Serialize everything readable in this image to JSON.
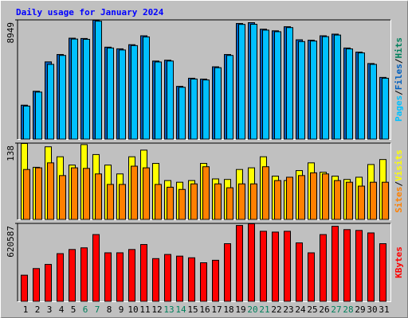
{
  "chart_data": [
    {
      "type": "bar",
      "title": "Daily usage for January 2024",
      "ylim": [
        0,
        8949
      ],
      "yticks": [
        8949
      ],
      "legend_separator": "/",
      "series": [
        {
          "name": "Hits",
          "color": "#00805c",
          "values": [
            2574,
            3617,
            5823,
            6375,
            7601,
            7580,
            8949,
            6927,
            6804,
            7110,
            7785,
            5884,
            5946,
            3984,
            4597,
            4536,
            5455,
            6375,
            8704,
            8765,
            8275,
            8152,
            8459,
            7478,
            7450,
            7785,
            7907,
            6865,
            6559,
            5700,
            4658
          ]
        },
        {
          "name": "Files",
          "color": "#0060c0",
          "values": [
            2574,
            3617,
            5823,
            6375,
            7601,
            7580,
            8949,
            6927,
            6804,
            7110,
            7785,
            5884,
            5946,
            3984,
            4597,
            4536,
            5455,
            6375,
            8704,
            8765,
            8275,
            8152,
            8459,
            7478,
            7450,
            7785,
            7907,
            6865,
            6559,
            5700,
            4658
          ]
        },
        {
          "name": "Pages",
          "color": "#00c0ff",
          "values": [
            2510,
            3560,
            5640,
            6310,
            7540,
            7520,
            8880,
            6870,
            6720,
            7050,
            7700,
            5820,
            5890,
            3920,
            4540,
            4470,
            5390,
            6310,
            8640,
            8650,
            8210,
            8090,
            8400,
            7350,
            7390,
            7720,
            7840,
            6800,
            6500,
            5640,
            4600
          ]
        }
      ]
    },
    {
      "type": "bar",
      "ylim": [
        0,
        138
      ],
      "yticks": [
        138
      ],
      "legend_separator": "/",
      "series": [
        {
          "name": "Visits",
          "color": "#ffff00",
          "values": [
            138,
            95,
            132,
            114,
            99,
            136,
            118,
            99,
            83,
            114,
            126,
            102,
            71,
            68,
            71,
            102,
            74,
            73,
            91,
            94,
            114,
            79,
            71,
            89,
            103,
            86,
            79,
            73,
            77,
            100,
            109
          ]
        },
        {
          "name": "Sites",
          "color": "#ff8000",
          "values": [
            91,
            94,
            103,
            80,
            94,
            93,
            83,
            64,
            64,
            97,
            94,
            64,
            59,
            55,
            65,
            96,
            65,
            58,
            65,
            65,
            96,
            71,
            77,
            80,
            85,
            83,
            71,
            68,
            61,
            68,
            68
          ]
        }
      ]
    },
    {
      "type": "bar",
      "ylim": [
        0,
        620587
      ],
      "yticks": [
        620587
      ],
      "categories": [
        "1",
        "2",
        "3",
        "4",
        "5",
        "6",
        "7",
        "8",
        "9",
        "10",
        "11",
        "12",
        "13",
        "14",
        "15",
        "16",
        "17",
        "18",
        "19",
        "20",
        "21",
        "22",
        "23",
        "24",
        "25",
        "26",
        "27",
        "28",
        "29",
        "30",
        "31"
      ],
      "category_colors": [
        "#000000",
        "#000000",
        "#000000",
        "#000000",
        "#000000",
        "#00805c",
        "#00805c",
        "#000000",
        "#000000",
        "#000000",
        "#000000",
        "#000000",
        "#00805c",
        "#00805c",
        "#000000",
        "#000000",
        "#000000",
        "#000000",
        "#000000",
        "#00805c",
        "#00805c",
        "#000000",
        "#000000",
        "#000000",
        "#000000",
        "#000000",
        "#00805c",
        "#00805c",
        "#000000",
        "#000000",
        "#000000"
      ],
      "series": [
        {
          "name": "KBytes",
          "color": "#ff0000",
          "values": [
            211264,
            264080,
            297090,
            382916,
            415926,
            429130,
            534762,
            389518,
            389700,
            415900,
            455538,
            343304,
            376314,
            363110,
            349906,
            310294,
            330100,
            462140,
            607384,
            620587,
            561170,
            554568,
            561000,
            468742,
            389400,
            534700,
            600782,
            574374,
            567772,
            547966,
            462100
          ]
        }
      ]
    }
  ]
}
